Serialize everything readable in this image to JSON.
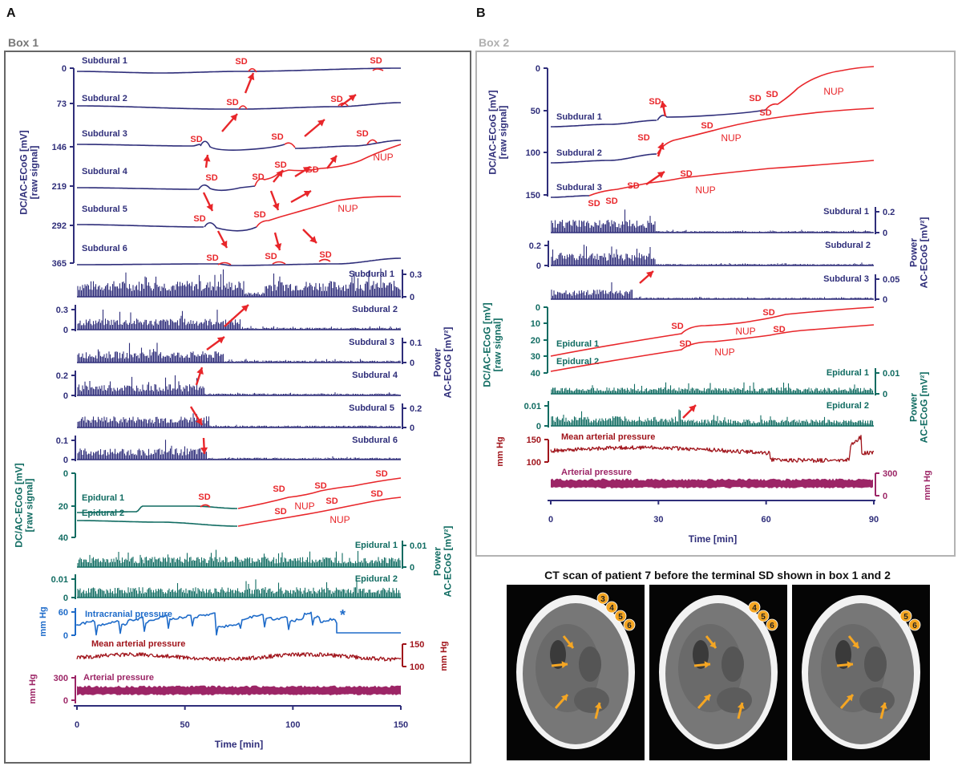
{
  "panel_labels": {
    "a": "A",
    "b": "B"
  },
  "box_titles": {
    "box1": "Box 1",
    "box2": "Box 2"
  },
  "ct_title": "CT scan of patient 7 before the terminal SD shown in box 1 and 2",
  "colors": {
    "navy": "#2f2e7a",
    "red": "#e8262a",
    "teal": "#116c62",
    "blue": "#1e6bc9",
    "darkred": "#a0141b",
    "purple": "#9c2566",
    "orange": "#f5a623",
    "box1_border": "#666666",
    "box2_border": "#b3b3b3"
  },
  "chart_data": [
    {
      "type": "line",
      "id": "box1",
      "title": "Box 1",
      "xlabel": "Time [min]",
      "xlim": [
        0,
        150
      ],
      "xticks": [
        "0",
        "50",
        "100",
        "150"
      ],
      "dc_subdural": {
        "ylabel": "DC/AC-ECoG [mV] [raw signal]",
        "yticks": [
          "0",
          "73",
          "146",
          "219",
          "292",
          "365"
        ],
        "channels": [
          "Subdural 1",
          "Subdural 2",
          "Subdural 3",
          "Subdural 4",
          "Subdural 5",
          "Subdural 6"
        ],
        "sd_label": "SD",
        "nup_label": "NUP"
      },
      "power_subdural": {
        "ylabel": "Power AC-ECoG [mV²]",
        "panels": [
          {
            "name": "Subdural 1",
            "axis": "right",
            "ticks": [
              "0.3",
              "0"
            ]
          },
          {
            "name": "Subdural 2",
            "axis": "left",
            "ticks": [
              "0.3",
              "0"
            ]
          },
          {
            "name": "Subdural 3",
            "axis": "right",
            "ticks": [
              "0.1",
              "0"
            ]
          },
          {
            "name": "Subdural 4",
            "axis": "left",
            "ticks": [
              "0.2",
              "0"
            ]
          },
          {
            "name": "Subdural 5",
            "axis": "right",
            "ticks": [
              "0.2",
              "0"
            ]
          },
          {
            "name": "Subdural 6",
            "axis": "left",
            "ticks": [
              "0.1",
              "0"
            ]
          }
        ]
      },
      "dc_epidural": {
        "ylabel": "DC/AC-ECoG [mV] [raw signal]",
        "yticks": [
          "0",
          "20",
          "40"
        ],
        "channels": [
          "Epidural 1",
          "Epidural 2"
        ]
      },
      "power_epidural": {
        "ylabel": "Power AC-ECoG [mV²]",
        "panels": [
          {
            "name": "Epidural 1",
            "axis": "right",
            "ticks": [
              "0.01",
              "0"
            ]
          },
          {
            "name": "Epidural 2",
            "axis": "left",
            "ticks": [
              "0.01",
              "0"
            ]
          }
        ]
      },
      "icp": {
        "label": "Intracranial pressure",
        "unit": "mm Hg",
        "ticks": [
          "60",
          "0"
        ],
        "marker": "*"
      },
      "map": {
        "label": "Mean arterial pressure",
        "unit": "mm Hg",
        "ticks": [
          "150",
          "100"
        ]
      },
      "ap": {
        "label": "Arterial pressure",
        "unit": "mm Hg",
        "ticks": [
          "300",
          "0"
        ]
      }
    },
    {
      "type": "line",
      "id": "box2",
      "title": "Box 2",
      "xlabel": "Time [min]",
      "xlim": [
        0,
        90
      ],
      "xticks": [
        "0",
        "30",
        "60",
        "90"
      ],
      "dc_subdural": {
        "ylabel": "DC/AC-ECoG [mV] [raw signal]",
        "yticks": [
          "0",
          "50",
          "100",
          "150"
        ],
        "channels": [
          "Subdural 1",
          "Subdural 2",
          "Subdural 3"
        ]
      },
      "power_subdural": {
        "ylabel": "Power AC-ECoG [mV²]",
        "panels": [
          {
            "name": "Subdural 1",
            "axis": "right",
            "ticks": [
              "0.2",
              "0"
            ]
          },
          {
            "name": "Subdural 2",
            "axis": "left",
            "ticks": [
              "0.2",
              "0"
            ]
          },
          {
            "name": "Subdural 3",
            "axis": "right",
            "ticks": [
              "0.05",
              "0"
            ]
          }
        ]
      },
      "dc_epidural": {
        "ylabel": "DC/AC-ECoG [mV] [raw signal]",
        "yticks": [
          "0",
          "10",
          "20",
          "30",
          "40"
        ],
        "channels": [
          "Epidural 1",
          "Epidural 2"
        ]
      },
      "power_epidural": {
        "ylabel": "Power AC-ECoG [mV²]",
        "panels": [
          {
            "name": "Epidural 1",
            "axis": "right",
            "ticks": [
              "0.01",
              "0"
            ]
          },
          {
            "name": "Epidural 2",
            "axis": "left",
            "ticks": [
              "0.01",
              "0"
            ]
          }
        ]
      },
      "map": {
        "label": "Mean arterial pressure",
        "unit": "mm Hg",
        "ticks": [
          "150",
          "100"
        ]
      },
      "ap": {
        "label": "Arterial pressure",
        "unit": "mm Hg",
        "ticks": [
          "300",
          "0"
        ]
      }
    }
  ],
  "ct_scans": [
    {
      "electrodes": [
        "3",
        "4",
        "5",
        "6"
      ]
    },
    {
      "electrodes": [
        "4",
        "5",
        "6"
      ]
    },
    {
      "electrodes": [
        "5",
        "6"
      ]
    }
  ]
}
